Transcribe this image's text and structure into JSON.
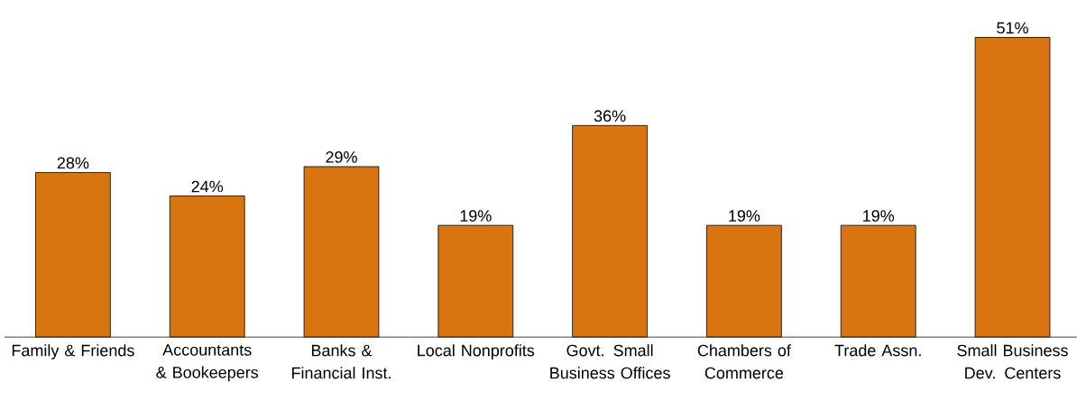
{
  "chart_data": {
    "type": "bar",
    "categories": [
      "Family & Friends",
      "Accountants & Bookeepers",
      "Banks & Financial Inst.",
      "Local Nonprofits",
      "Govt. Small Business Offices",
      "Chambers of Commerce",
      "Trade Assn.",
      "Small Business Dev. Centers"
    ],
    "values": [
      28,
      24,
      29,
      19,
      36,
      19,
      19,
      51
    ],
    "value_labels": [
      "28%",
      "24%",
      "29%",
      "19%",
      "36%",
      "19%",
      "19%",
      "51%"
    ],
    "color": "#d97511"
  }
}
